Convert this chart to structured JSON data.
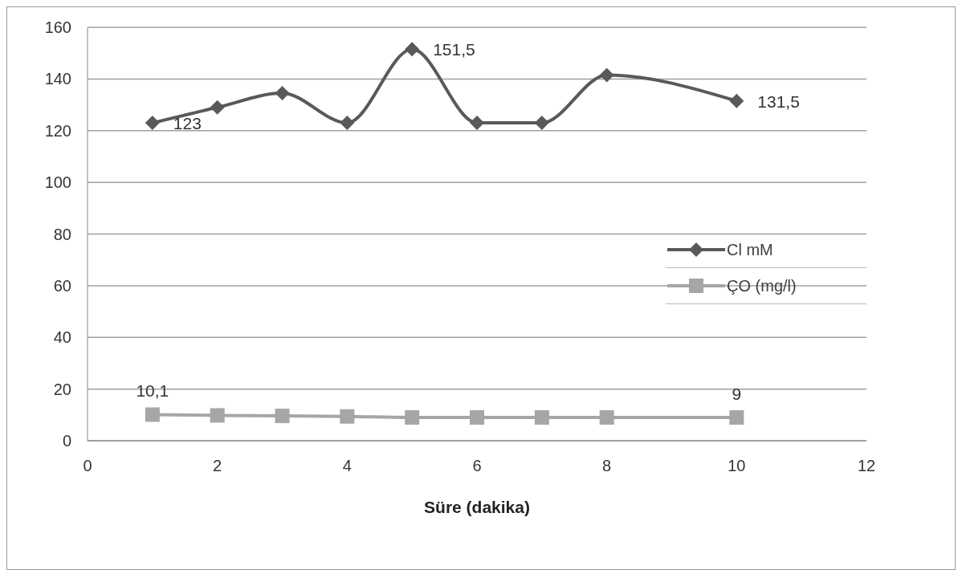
{
  "chart_data": {
    "type": "line",
    "xlabel": "Süre (dakika)",
    "x": [
      1,
      2,
      3,
      4,
      5,
      6,
      7,
      8,
      10
    ],
    "series": [
      {
        "name": "Cl mM",
        "color": "#595959",
        "marker": "diamond",
        "values": [
          123,
          129,
          134.5,
          123,
          151.5,
          123,
          123,
          141.5,
          131.5
        ],
        "value_labels": [
          "123",
          null,
          null,
          null,
          "151,5",
          null,
          null,
          null,
          "131,5"
        ]
      },
      {
        "name": "ÇO (mg/l)",
        "color": "#a6a6a6",
        "marker": "square",
        "values": [
          10.1,
          9.8,
          9.6,
          9.4,
          9,
          9,
          9,
          9,
          9
        ],
        "value_labels": [
          "10,1",
          null,
          null,
          null,
          null,
          null,
          null,
          null,
          "9"
        ]
      }
    ],
    "xlim": [
      0,
      12
    ],
    "xticks": [
      0,
      2,
      4,
      6,
      8,
      10,
      12
    ],
    "ylim": [
      0,
      160
    ],
    "yticks": [
      0,
      20,
      40,
      60,
      80,
      100,
      120,
      140,
      160
    ],
    "grid": "y",
    "legend": "right"
  }
}
